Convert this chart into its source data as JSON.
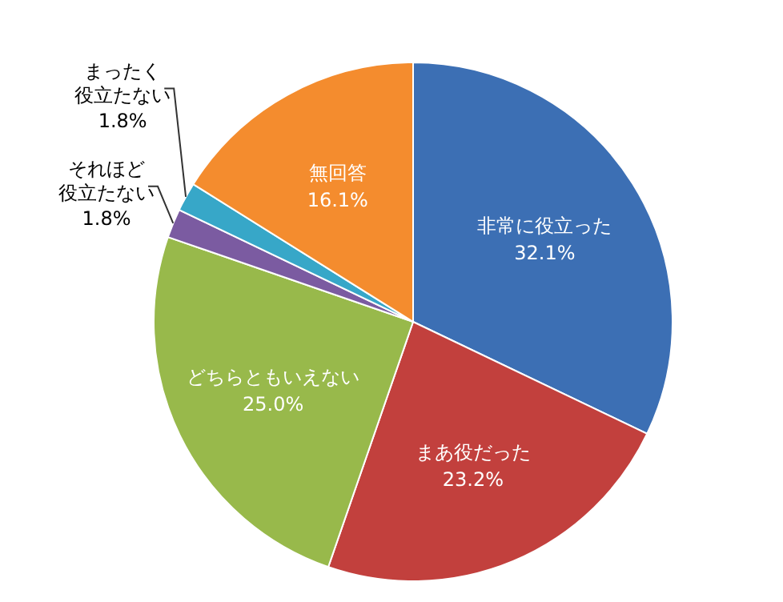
{
  "chart_data": {
    "type": "pie",
    "categories": [
      "非常に役立った",
      "まあ役だった",
      "どちらともいえない",
      "それほど役立たない",
      "まったく役立たない",
      "無回答"
    ],
    "values": [
      32.1,
      23.2,
      25.0,
      1.8,
      1.8,
      16.1
    ],
    "colors": [
      "#3c6fb4",
      "#c2403d",
      "#98b94b",
      "#7b5ba1",
      "#37a7c8",
      "#f48c2e"
    ],
    "value_labels": [
      "32.1%",
      "23.2%",
      "25.0%",
      "1.8%",
      "1.8%",
      "16.1%"
    ],
    "legend": false
  }
}
